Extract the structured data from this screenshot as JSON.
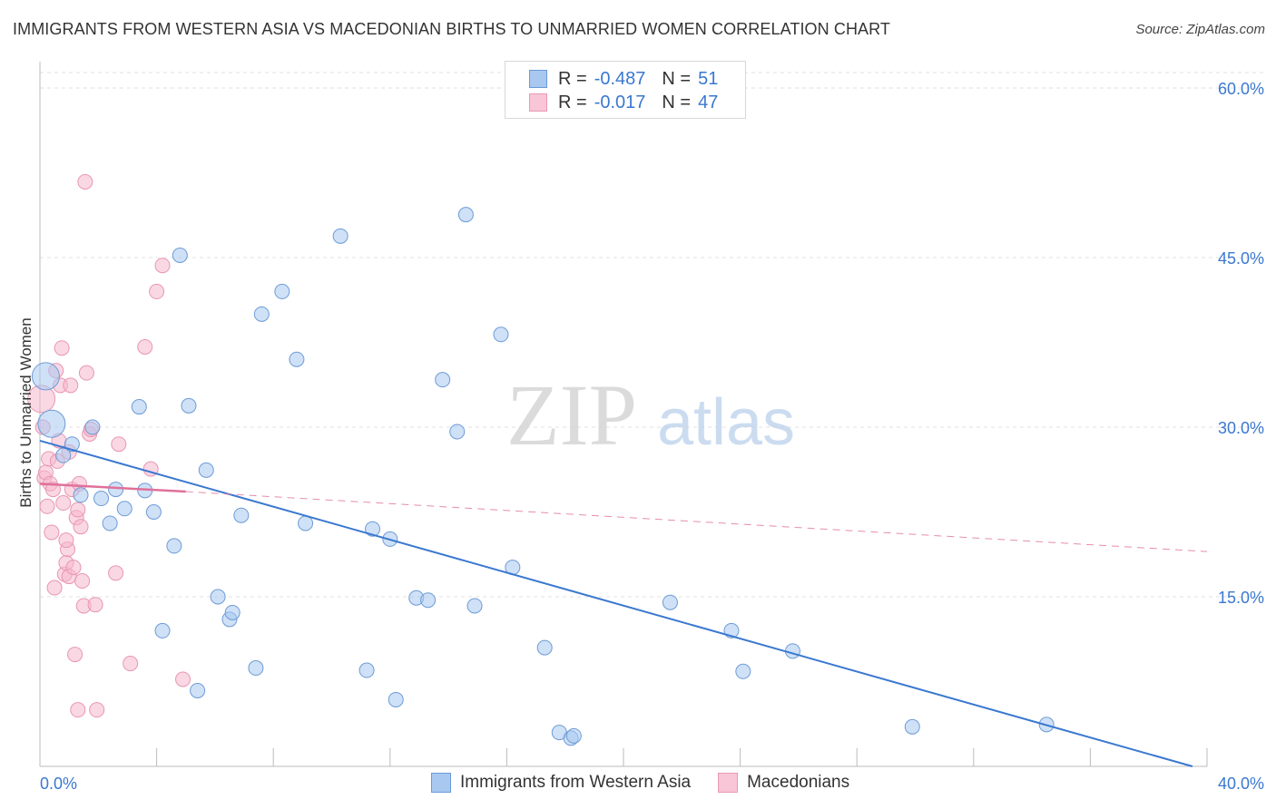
{
  "title": "IMMIGRANTS FROM WESTERN ASIA VS MACEDONIAN BIRTHS TO UNMARRIED WOMEN CORRELATION CHART",
  "source": "Source: ZipAtlas.com",
  "watermark": {
    "zip": "ZIP",
    "atlas": "atlas"
  },
  "legend_top": {
    "rows": [
      {
        "r_label": "R = ",
        "r_value": "-0.487",
        "n_label": "N = ",
        "n_value": "51"
      },
      {
        "r_label": "R = ",
        "r_value": "-0.017",
        "n_label": "N = ",
        "n_value": "47"
      }
    ]
  },
  "chart_data": {
    "type": "scatter",
    "title": "IMMIGRANTS FROM WESTERN ASIA VS MACEDONIAN BIRTHS TO UNMARRIED WOMEN CORRELATION CHART",
    "xlabel": "",
    "ylabel": "Births to Unmarried Women",
    "xlim": [
      0,
      40
    ],
    "ylim": [
      0,
      60
    ],
    "x_tick_labels": [
      "0.0%",
      "40.0%"
    ],
    "y_ticks": [
      15,
      30,
      45,
      60
    ],
    "y_tick_labels": [
      "15.0%",
      "30.0%",
      "45.0%",
      "60.0%"
    ],
    "grid": true,
    "colors": {
      "blue": "#3a78d0",
      "blue_fill": "#a8c8f0",
      "pink": "#e0709a",
      "pink_fill": "#f5b8cc"
    },
    "series": [
      {
        "name": "Immigrants from Western Asia",
        "color": "#3a78d0",
        "trend": {
          "x0": 0,
          "y0": 28.8,
          "x1": 39.5,
          "y1": 0
        },
        "points": [
          {
            "x": 0.2,
            "y": 34.5,
            "big": true
          },
          {
            "x": 0.4,
            "y": 30.3,
            "big": true
          },
          {
            "x": 0.8,
            "y": 27.5
          },
          {
            "x": 1.1,
            "y": 28.5
          },
          {
            "x": 1.4,
            "y": 24.0
          },
          {
            "x": 1.8,
            "y": 30.0
          },
          {
            "x": 2.1,
            "y": 23.7
          },
          {
            "x": 2.4,
            "y": 21.5
          },
          {
            "x": 2.6,
            "y": 24.5
          },
          {
            "x": 2.9,
            "y": 22.8
          },
          {
            "x": 3.4,
            "y": 31.8
          },
          {
            "x": 3.6,
            "y": 24.4
          },
          {
            "x": 3.9,
            "y": 22.5
          },
          {
            "x": 4.2,
            "y": 12.0
          },
          {
            "x": 4.6,
            "y": 19.5
          },
          {
            "x": 4.8,
            "y": 45.2
          },
          {
            "x": 5.1,
            "y": 31.9
          },
          {
            "x": 5.4,
            "y": 6.7
          },
          {
            "x": 5.7,
            "y": 26.2
          },
          {
            "x": 6.1,
            "y": 15.0
          },
          {
            "x": 6.5,
            "y": 13.0
          },
          {
            "x": 6.6,
            "y": 13.6
          },
          {
            "x": 6.9,
            "y": 22.2
          },
          {
            "x": 7.4,
            "y": 8.7
          },
          {
            "x": 7.6,
            "y": 40.0
          },
          {
            "x": 8.3,
            "y": 42.0
          },
          {
            "x": 8.8,
            "y": 36.0
          },
          {
            "x": 9.1,
            "y": 21.5
          },
          {
            "x": 10.3,
            "y": 46.9
          },
          {
            "x": 11.2,
            "y": 8.5
          },
          {
            "x": 11.4,
            "y": 21.0
          },
          {
            "x": 12.0,
            "y": 20.1
          },
          {
            "x": 12.2,
            "y": 5.9
          },
          {
            "x": 12.9,
            "y": 14.9
          },
          {
            "x": 13.3,
            "y": 14.7
          },
          {
            "x": 13.8,
            "y": 34.2
          },
          {
            "x": 14.3,
            "y": 29.6
          },
          {
            "x": 14.6,
            "y": 48.8
          },
          {
            "x": 14.9,
            "y": 14.2
          },
          {
            "x": 15.8,
            "y": 38.2
          },
          {
            "x": 16.2,
            "y": 17.6
          },
          {
            "x": 17.3,
            "y": 10.5
          },
          {
            "x": 17.8,
            "y": 3.0
          },
          {
            "x": 18.2,
            "y": 2.5
          },
          {
            "x": 18.3,
            "y": 2.7
          },
          {
            "x": 21.6,
            "y": 14.5
          },
          {
            "x": 23.7,
            "y": 12.0
          },
          {
            "x": 24.1,
            "y": 8.4
          },
          {
            "x": 25.8,
            "y": 10.2
          },
          {
            "x": 29.9,
            "y": 3.5
          },
          {
            "x": 34.5,
            "y": 3.7
          }
        ]
      },
      {
        "name": "Macedonians",
        "color": "#e0709a",
        "trend": {
          "x0": 0,
          "y0": 25.0,
          "x1": 5.0,
          "y1": 24.3
        },
        "trend_extension": {
          "x0": 5.0,
          "y0": 24.3,
          "x1": 40.0,
          "y1": 19.0
        },
        "points": [
          {
            "x": 0.05,
            "y": 32.5,
            "big": true
          },
          {
            "x": 0.1,
            "y": 30.0
          },
          {
            "x": 0.15,
            "y": 25.5
          },
          {
            "x": 0.2,
            "y": 26.0
          },
          {
            "x": 0.3,
            "y": 27.2
          },
          {
            "x": 0.35,
            "y": 25.0
          },
          {
            "x": 0.4,
            "y": 20.7
          },
          {
            "x": 0.45,
            "y": 24.5
          },
          {
            "x": 0.5,
            "y": 15.8
          },
          {
            "x": 0.55,
            "y": 35.0
          },
          {
            "x": 0.6,
            "y": 27.0
          },
          {
            "x": 0.7,
            "y": 33.7
          },
          {
            "x": 0.75,
            "y": 37.0
          },
          {
            "x": 0.8,
            "y": 23.3
          },
          {
            "x": 0.85,
            "y": 17.0
          },
          {
            "x": 0.9,
            "y": 18.0
          },
          {
            "x": 0.95,
            "y": 19.2
          },
          {
            "x": 1.0,
            "y": 16.8
          },
          {
            "x": 1.05,
            "y": 33.7
          },
          {
            "x": 1.1,
            "y": 24.5
          },
          {
            "x": 1.15,
            "y": 17.6
          },
          {
            "x": 1.2,
            "y": 9.9
          },
          {
            "x": 1.25,
            "y": 22.0
          },
          {
            "x": 1.3,
            "y": 5.0
          },
          {
            "x": 1.35,
            "y": 25.0
          },
          {
            "x": 1.4,
            "y": 21.2
          },
          {
            "x": 1.45,
            "y": 16.4
          },
          {
            "x": 1.5,
            "y": 14.2
          },
          {
            "x": 1.55,
            "y": 51.7
          },
          {
            "x": 1.6,
            "y": 34.8
          },
          {
            "x": 1.7,
            "y": 29.4
          },
          {
            "x": 1.75,
            "y": 29.8
          },
          {
            "x": 1.9,
            "y": 14.3
          },
          {
            "x": 1.95,
            "y": 5.0
          },
          {
            "x": 2.6,
            "y": 17.1
          },
          {
            "x": 2.7,
            "y": 28.5
          },
          {
            "x": 3.1,
            "y": 9.1
          },
          {
            "x": 3.6,
            "y": 37.1
          },
          {
            "x": 3.8,
            "y": 26.3
          },
          {
            "x": 4.0,
            "y": 42.0
          },
          {
            "x": 4.2,
            "y": 44.3
          },
          {
            "x": 4.9,
            "y": 7.7
          },
          {
            "x": 0.65,
            "y": 28.8
          },
          {
            "x": 1.0,
            "y": 27.8
          },
          {
            "x": 0.25,
            "y": 23.0
          },
          {
            "x": 0.9,
            "y": 20.0
          },
          {
            "x": 1.3,
            "y": 22.7
          }
        ]
      }
    ]
  },
  "legend_bottom": {
    "items": [
      {
        "label": "Immigrants from Western Asia"
      },
      {
        "label": "Macedonians"
      }
    ]
  }
}
